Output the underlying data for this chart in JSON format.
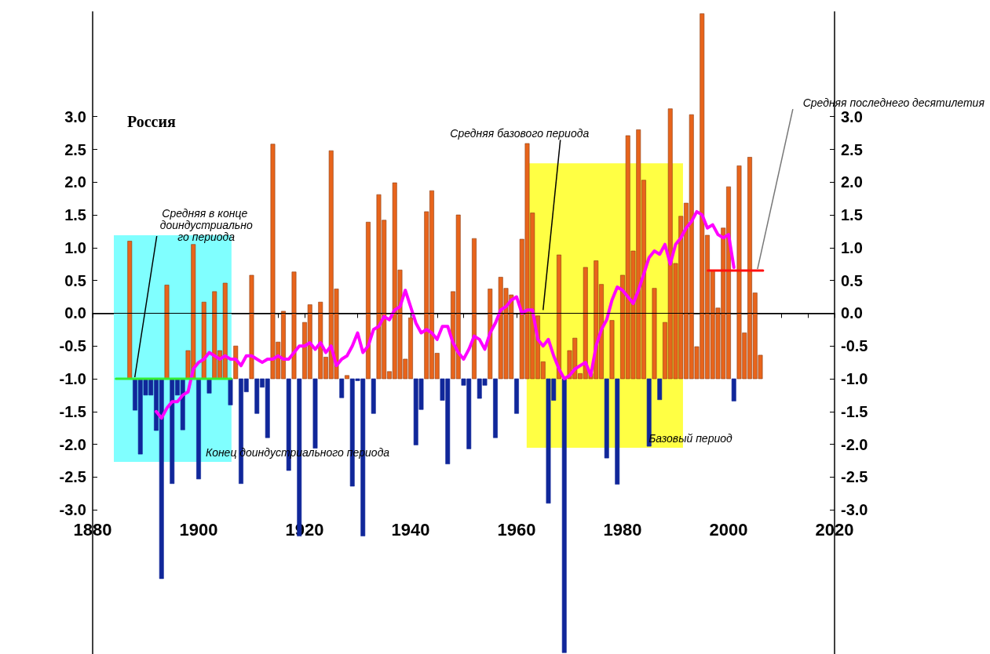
{
  "chart_data": {
    "type": "bar",
    "title": "Россия",
    "xlim": [
      1880,
      2020
    ],
    "xticks": [
      1880,
      {
        "value": 1885,
        "label": null
      },
      {
        "value": 1890,
        "label": null
      },
      {
        "value": 1895,
        "label": null
      },
      1900,
      {
        "value": 1905,
        "label": null
      },
      {
        "value": 1910,
        "label": null
      },
      {
        "value": 1915,
        "label": null
      },
      1920,
      {
        "value": 1925,
        "label": null
      },
      {
        "value": 1930,
        "label": null
      },
      {
        "value": 1935,
        "label": null
      },
      1940,
      {
        "value": 1945,
        "label": null
      },
      {
        "value": 1950,
        "label": null
      },
      {
        "value": 1955,
        "label": null
      },
      1960,
      {
        "value": 1965,
        "label": null
      },
      {
        "value": 1970,
        "label": null
      },
      {
        "value": 1975,
        "label": null
      },
      1980,
      {
        "value": 1985,
        "label": null
      },
      {
        "value": 1990,
        "label": null
      },
      {
        "value": 1995,
        "label": null
      },
      2000,
      {
        "value": 2005,
        "label": null
      },
      {
        "value": 2010,
        "label": null
      },
      {
        "value": 2015,
        "label": null
      },
      2020
    ],
    "ylim": [
      -5.2,
      4.6
    ],
    "yticks": [
      {
        "value": -3,
        "label": "-3.0"
      },
      -2.5,
      {
        "value": -2,
        "label": "-2.0"
      },
      -1.5,
      {
        "value": -1,
        "label": "-1.0"
      },
      -0.5,
      {
        "value": 0,
        "label": "0.0"
      },
      0.5,
      {
        "value": 1,
        "label": "1.0"
      },
      1.5,
      {
        "value": 2,
        "label": "2.0"
      },
      2.5,
      {
        "value": 3,
        "label": "3.0"
      }
    ],
    "y2lim": [
      -5.2,
      4.6
    ],
    "y2ticks": [
      {
        "value": -3,
        "label": "-3.0"
      },
      -2.5,
      {
        "value": -2,
        "label": "-2.0"
      },
      -1.5,
      {
        "value": -1,
        "label": "-1.0"
      },
      -0.5,
      {
        "value": 0,
        "label": "0.0"
      },
      0.5,
      {
        "value": 1,
        "label": "1.0"
      },
      1.5,
      {
        "value": 2,
        "label": "2.0"
      },
      2.5,
      {
        "value": 3,
        "label": "3.0"
      }
    ],
    "series": [
      {
        "color": "#e8641b",
        "x": [
          1887,
          1894,
          1898,
          1899,
          1901,
          1903,
          1904,
          1905,
          1907,
          1910,
          1914,
          1915,
          1916,
          1918,
          1920,
          1921,
          1923,
          1924,
          1925,
          1926,
          1928,
          1932,
          1934,
          1935,
          1936,
          1937,
          1938,
          1939,
          1940,
          1943,
          1944,
          1945,
          1948,
          1949,
          1952,
          1955,
          1957,
          1958,
          1959,
          1961,
          1962,
          1963,
          1964,
          1965,
          1968,
          1970,
          1971,
          1972,
          1973,
          1974,
          1975,
          1976,
          1978,
          1980,
          1981,
          1982,
          1983,
          1984,
          1986,
          1988,
          1989,
          1990,
          1991,
          1992,
          1993,
          1994,
          1995,
          1996,
          1997,
          1998,
          1999,
          2000,
          2002,
          2003,
          2004,
          2005,
          2006
        ],
        "base": [
          -1,
          -1,
          -1,
          -1,
          -1,
          -1,
          -1,
          -1,
          -1,
          -1,
          -1,
          -1,
          -1,
          -1,
          -1,
          -1,
          -1,
          -1,
          -1,
          -1,
          -1,
          -1,
          -1,
          -1,
          -1,
          -1,
          -1,
          -1,
          -1,
          -1,
          -1,
          -1,
          -1,
          -1,
          -1,
          -1,
          -1,
          -1,
          -1,
          -1,
          -1,
          -1,
          -1,
          -1,
          -1,
          -1,
          -1,
          -1,
          -1,
          -1,
          -1,
          -1,
          -1,
          -1,
          -1,
          -1,
          -1,
          -1,
          -1,
          -1,
          -1,
          -1,
          -1,
          -1,
          -1,
          -1,
          -1,
          -1,
          -1,
          -1,
          -1,
          -1,
          -1,
          -1,
          -1,
          -1,
          -1
        ],
        "values": [
          2.1,
          1.43,
          0.43,
          2.05,
          1.17,
          1.33,
          0.43,
          1.46,
          0.5,
          1.58,
          3.58,
          0.56,
          1.03,
          1.63,
          0.86,
          1.13,
          1.17,
          0.33,
          3.48,
          1.37,
          0.05,
          2.39,
          2.81,
          2.42,
          0.11,
          2.99,
          1.66,
          0.3,
          0.93,
          2.55,
          2.87,
          0.39,
          1.33,
          2.5,
          2.14,
          1.37,
          1.55,
          1.38,
          1.28,
          2.13,
          3.59,
          2.53,
          0.96,
          0.26,
          1.89,
          0.43,
          0.62,
          0.08,
          1.7,
          0.08,
          1.8,
          1.44,
          0.89,
          1.58,
          3.71,
          1.95,
          3.8,
          3.03,
          1.38,
          0.86,
          4.12,
          1.76,
          2.48,
          2.68,
          4.03,
          0.49,
          5.57,
          2.19,
          1.65,
          1.08,
          2.3,
          2.93,
          3.25,
          0.7,
          3.38,
          1.31,
          0.36
        ]
      },
      {
        "color": "#10279a",
        "x": [
          1888,
          1889,
          1890,
          1891,
          1892,
          1893,
          1895,
          1896,
          1897,
          1900,
          1902,
          1906,
          1908,
          1909,
          1911,
          1912,
          1913,
          1917,
          1919,
          1922,
          1927,
          1929,
          1930,
          1931,
          1933,
          1941,
          1942,
          1946,
          1947,
          1950,
          1951,
          1953,
          1954,
          1956,
          1960,
          1966,
          1967,
          1969,
          1977,
          1979,
          1985,
          1987,
          2001
        ],
        "base": [
          -1,
          -1,
          -1,
          -1,
          -1,
          -1,
          -1,
          -1,
          -1,
          -1,
          -1,
          -1,
          -1,
          -1,
          -1,
          -1,
          -1,
          -1,
          -1,
          -1,
          -1,
          -1,
          -1,
          -1,
          -1,
          -1,
          -1,
          -1,
          -1,
          -1,
          -1,
          -1,
          -1,
          -1,
          -1,
          -1,
          -1,
          -1,
          -1,
          -1,
          -1,
          -1,
          -1
        ],
        "values": [
          -0.48,
          -1.15,
          -0.25,
          -0.25,
          -0.79,
          -3.05,
          -1.6,
          -0.25,
          -0.78,
          -1.53,
          -0.22,
          -0.4,
          -1.6,
          -0.2,
          -0.53,
          -0.13,
          -0.9,
          -1.4,
          -2.4,
          -1.06,
          -0.29,
          -1.64,
          -0.03,
          -2.4,
          -0.53,
          -1.01,
          -0.47,
          -0.33,
          -1.3,
          -0.1,
          -1.07,
          -0.3,
          -0.1,
          -0.9,
          -0.53,
          -1.9,
          -0.33,
          -4.18,
          -1.21,
          -1.61,
          -1.03,
          -0.32,
          -0.34
        ]
      },
      {
        "type": "line",
        "color": "#ff00ff",
        "x": [
          1892,
          1893,
          1894,
          1895,
          1896,
          1897,
          1898,
          1899,
          1900,
          1901,
          1902,
          1903,
          1904,
          1905,
          1906,
          1907,
          1908,
          1909,
          1910,
          1911,
          1912,
          1913,
          1914,
          1915,
          1916,
          1917,
          1918,
          1919,
          1920,
          1921,
          1922,
          1923,
          1924,
          1925,
          1926,
          1927,
          1928,
          1929,
          1930,
          1931,
          1932,
          1933,
          1934,
          1935,
          1936,
          1937,
          1938,
          1939,
          1940,
          1941,
          1942,
          1943,
          1944,
          1945,
          1946,
          1947,
          1948,
          1949,
          1950,
          1951,
          1952,
          1953,
          1954,
          1955,
          1956,
          1957,
          1958,
          1959,
          1960,
          1961,
          1962,
          1963,
          1964,
          1965,
          1966,
          1967,
          1968,
          1969,
          1970,
          1971,
          1972,
          1973,
          1974,
          1975,
          1976,
          1977,
          1978,
          1979,
          1980,
          1981,
          1982,
          1983,
          1984,
          1985,
          1986,
          1987,
          1988,
          1989,
          1990,
          1991,
          1992,
          1993,
          1994,
          1995,
          1996,
          1997,
          1998,
          1999,
          2000,
          2001
        ],
        "values": [
          -1.5,
          -1.6,
          -1.45,
          -1.35,
          -1.35,
          -1.25,
          -1.2,
          -0.85,
          -0.75,
          -0.7,
          -0.6,
          -0.65,
          -0.7,
          -0.65,
          -0.7,
          -0.7,
          -0.8,
          -0.65,
          -0.65,
          -0.7,
          -0.75,
          -0.7,
          -0.7,
          -0.65,
          -0.7,
          -0.7,
          -0.6,
          -0.5,
          -0.5,
          -0.45,
          -0.55,
          -0.45,
          -0.6,
          -0.5,
          -0.8,
          -0.7,
          -0.65,
          -0.5,
          -0.3,
          -0.6,
          -0.5,
          -0.25,
          -0.2,
          -0.05,
          -0.1,
          0.05,
          0.1,
          0.35,
          0.1,
          -0.15,
          -0.3,
          -0.25,
          -0.3,
          -0.4,
          -0.2,
          -0.2,
          -0.45,
          -0.6,
          -0.7,
          -0.55,
          -0.35,
          -0.4,
          -0.55,
          -0.3,
          -0.15,
          0.05,
          0.1,
          0.2,
          0.25,
          0.0,
          0.05,
          0.05,
          -0.4,
          -0.5,
          -0.4,
          -0.65,
          -0.85,
          -1.0,
          -0.95,
          -0.85,
          -0.8,
          -0.75,
          -0.95,
          -0.5,
          -0.25,
          -0.1,
          0.2,
          0.4,
          0.35,
          0.25,
          0.15,
          0.35,
          0.6,
          0.85,
          0.95,
          0.9,
          1.05,
          0.75,
          1.05,
          1.15,
          1.3,
          1.4,
          1.55,
          1.5,
          1.3,
          1.35,
          1.2,
          1.15,
          1.2,
          0.7
        ]
      },
      {
        "type": "line",
        "name": "Средняя в конце доиндустриального периода",
        "color": "#33ee33",
        "x": [
          1884.4,
          1906.2
        ],
        "values": [
          -1.0,
          -1.0
        ]
      },
      {
        "type": "line",
        "name": "Средняя последнего десятилетия",
        "color": "#ff1010",
        "x": [
          1996.1,
          2006.5
        ],
        "values": [
          0.65,
          0.65
        ]
      }
    ],
    "ref_lines": [
      {
        "axis": "y",
        "value": 0,
        "label": "Средняя базового периода",
        "color": "#000000"
      }
    ],
    "bands": [
      {
        "axis": "x",
        "from": 1884,
        "to": 1906.2,
        "label": "Конец доиндустриального периода",
        "color": "#80ffff"
      },
      {
        "axis": "x",
        "from": 1961.9,
        "to": 1991.4,
        "label": "Базовый период",
        "color": "#ffff44"
      }
    ]
  }
}
